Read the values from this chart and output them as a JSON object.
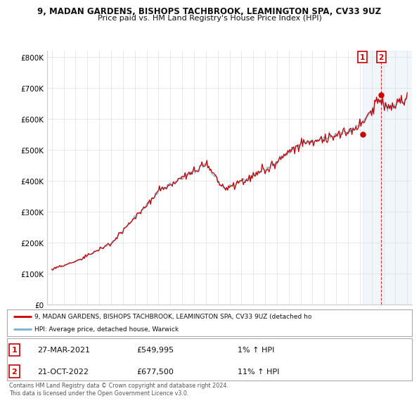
{
  "title_line1": "9, MADAN GARDENS, BISHOPS TACHBROOK, LEAMINGTON SPA, CV33 9UZ",
  "title_line2": "Price paid vs. HM Land Registry's House Price Index (HPI)",
  "background_color": "#ffffff",
  "grid_color": "#dddddd",
  "hpi_color": "#7bafd4",
  "price_color": "#cc0000",
  "sale1_label": "1",
  "sale1_date": "27-MAR-2021",
  "sale1_price": "£549,995",
  "sale1_hpi": "1% ↑ HPI",
  "sale2_label": "2",
  "sale2_date": "21-OCT-2022",
  "sale2_price": "£677,500",
  "sale2_hpi": "11% ↑ HPI",
  "legend_line1": "9, MADAN GARDENS, BISHOPS TACHBROOK, LEAMINGTON SPA, CV33 9UZ (detached ho",
  "legend_line2": "HPI: Average price, detached house, Warwick",
  "footer": "Contains HM Land Registry data © Crown copyright and database right 2024.\nThis data is licensed under the Open Government Licence v3.0.",
  "ylim": [
    0,
    820000
  ],
  "yticks": [
    0,
    100000,
    200000,
    300000,
    400000,
    500000,
    600000,
    700000,
    800000
  ],
  "ytick_labels": [
    "£0",
    "£100K",
    "£200K",
    "£300K",
    "£400K",
    "£500K",
    "£600K",
    "£700K",
    "£800K"
  ],
  "sale1_x": 2021.24,
  "sale1_y": 549995,
  "sale2_x": 2022.8,
  "sale2_y": 677500,
  "xlim_left": 1994.6,
  "xlim_right": 2025.4
}
